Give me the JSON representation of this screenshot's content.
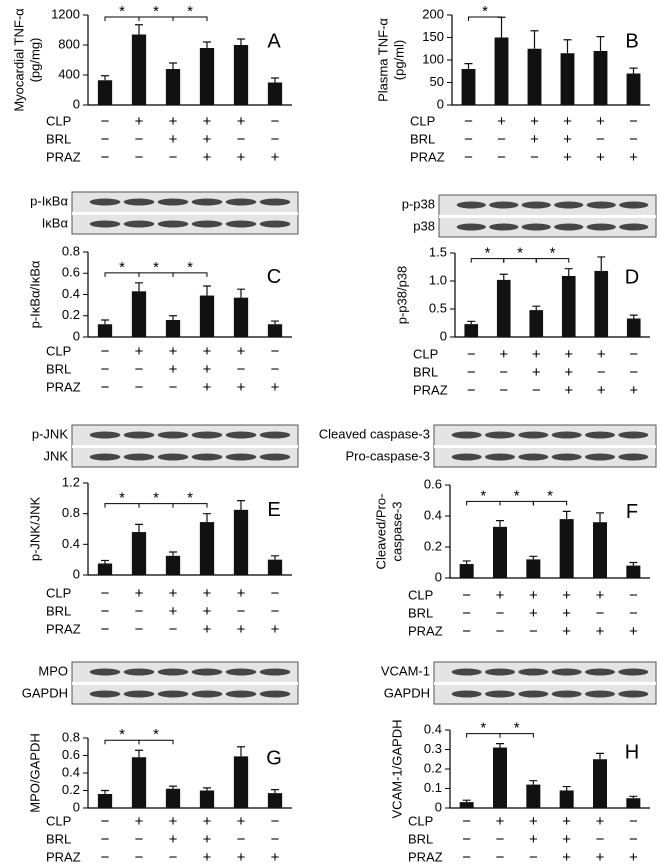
{
  "chart_data": [
    {
      "type": "bar",
      "letter": "A",
      "ylabel": [
        "Myocardial TNF-α",
        "(pg/mg)"
      ],
      "color": "#111111",
      "values": [
        330,
        940,
        480,
        760,
        800,
        300
      ],
      "errors": [
        60,
        130,
        80,
        80,
        80,
        60
      ],
      "ylim": [
        0,
        1200
      ],
      "yticks": [
        0,
        400,
        800,
        1200
      ],
      "significance": [
        {
          "label": "*",
          "from": 0,
          "to": 1
        },
        {
          "label": "*",
          "from": 1,
          "to": 2
        },
        {
          "label": "*",
          "from": 2,
          "to": 3
        }
      ],
      "treatments": [
        {
          "name": "CLP",
          "signs": [
            "−",
            "+",
            "+",
            "+",
            "+",
            "−"
          ]
        },
        {
          "name": "BRL",
          "signs": [
            "−",
            "−",
            "+",
            "+",
            "−",
            "−"
          ]
        },
        {
          "name": "PRAZ",
          "signs": [
            "−",
            "−",
            "−",
            "+",
            "+",
            "+"
          ]
        }
      ]
    },
    {
      "type": "bar",
      "letter": "B",
      "ylabel": [
        "Plasma TNF-α",
        "(pg/ml)"
      ],
      "color": "#111111",
      "values": [
        80,
        150,
        125,
        115,
        120,
        70
      ],
      "errors": [
        12,
        45,
        40,
        30,
        32,
        12
      ],
      "ylim": [
        0,
        200
      ],
      "yticks": [
        0,
        50,
        100,
        150,
        200
      ],
      "significance": [
        {
          "label": "*",
          "from": 0,
          "to": 1
        }
      ],
      "treatments": [
        {
          "name": "CLP",
          "signs": [
            "−",
            "+",
            "+",
            "+",
            "+",
            "−"
          ]
        },
        {
          "name": "BRL",
          "signs": [
            "−",
            "−",
            "+",
            "+",
            "−",
            "−"
          ]
        },
        {
          "name": "PRAZ",
          "signs": [
            "−",
            "−",
            "−",
            "+",
            "+",
            "+"
          ]
        }
      ]
    },
    {
      "type": "bar",
      "letter": "C",
      "blot_labels": [
        "p-IκBα",
        "IκBα"
      ],
      "ylabel": [
        "p-IκBα/IκBα"
      ],
      "color": "#111111",
      "values": [
        0.12,
        0.43,
        0.16,
        0.39,
        0.37,
        0.12
      ],
      "errors": [
        0.04,
        0.08,
        0.04,
        0.09,
        0.08,
        0.03
      ],
      "ylim": [
        0,
        0.8
      ],
      "yticks": [
        0,
        0.2,
        0.4,
        0.6,
        0.8
      ],
      "significance": [
        {
          "label": "*",
          "from": 0,
          "to": 1
        },
        {
          "label": "*",
          "from": 1,
          "to": 2
        },
        {
          "label": "*",
          "from": 2,
          "to": 3
        }
      ],
      "treatments": [
        {
          "name": "CLP",
          "signs": [
            "−",
            "+",
            "+",
            "+",
            "+",
            "−"
          ]
        },
        {
          "name": "BRL",
          "signs": [
            "−",
            "−",
            "+",
            "+",
            "−",
            "−"
          ]
        },
        {
          "name": "PRAZ",
          "signs": [
            "−",
            "−",
            "−",
            "+",
            "+",
            "+"
          ]
        }
      ]
    },
    {
      "type": "bar",
      "letter": "D",
      "blot_labels": [
        "p-p38",
        "p38"
      ],
      "ylabel": [
        "p-p38/p38"
      ],
      "color": "#111111",
      "values": [
        0.23,
        1.02,
        0.48,
        1.09,
        1.18,
        0.33
      ],
      "errors": [
        0.05,
        0.1,
        0.07,
        0.13,
        0.25,
        0.06
      ],
      "ylim": [
        0,
        1.5
      ],
      "yticks": [
        0,
        0.5,
        {
          "value": 1,
          "label": "1.0"
        },
        1.5
      ],
      "significance": [
        {
          "label": "*",
          "from": 0,
          "to": 1
        },
        {
          "label": "*",
          "from": 1,
          "to": 2
        },
        {
          "label": "*",
          "from": 2,
          "to": 3
        }
      ],
      "treatments": [
        {
          "name": "CLP",
          "signs": [
            "−",
            "+",
            "+",
            "+",
            "+",
            "−"
          ]
        },
        {
          "name": "BRL",
          "signs": [
            "−",
            "−",
            "+",
            "+",
            "−",
            "−"
          ]
        },
        {
          "name": "PRAZ",
          "signs": [
            "−",
            "−",
            "−",
            "+",
            "+",
            "+"
          ]
        }
      ]
    },
    {
      "type": "bar",
      "letter": "E",
      "blot_labels": [
        "p-JNK",
        "JNK"
      ],
      "ylabel": [
        "p-JNK/JNK"
      ],
      "color": "#111111",
      "values": [
        0.15,
        0.56,
        0.25,
        0.69,
        0.85,
        0.2
      ],
      "errors": [
        0.04,
        0.1,
        0.05,
        0.11,
        0.12,
        0.05
      ],
      "ylim": [
        0,
        1.2
      ],
      "yticks": [
        0,
        0.4,
        0.8,
        1.2
      ],
      "significance": [
        {
          "label": "*",
          "from": 0,
          "to": 1
        },
        {
          "label": "*",
          "from": 1,
          "to": 2
        },
        {
          "label": "*",
          "from": 2,
          "to": 3
        }
      ],
      "treatments": [
        {
          "name": "CLP",
          "signs": [
            "−",
            "+",
            "+",
            "+",
            "+",
            "−"
          ]
        },
        {
          "name": "BRL",
          "signs": [
            "−",
            "−",
            "+",
            "+",
            "−",
            "−"
          ]
        },
        {
          "name": "PRAZ",
          "signs": [
            "−",
            "−",
            "−",
            "+",
            "+",
            "+"
          ]
        }
      ]
    },
    {
      "type": "bar",
      "letter": "F",
      "blot_labels": [
        "Cleaved caspase-3",
        "Pro-caspase-3"
      ],
      "ylabel": [
        "Cleaved/Pro-",
        "caspase-3"
      ],
      "color": "#111111",
      "values": [
        0.09,
        0.33,
        0.12,
        0.38,
        0.36,
        0.08
      ],
      "errors": [
        0.02,
        0.04,
        0.02,
        0.05,
        0.06,
        0.02
      ],
      "ylim": [
        0,
        0.6
      ],
      "yticks": [
        0,
        0.2,
        0.4,
        0.6
      ],
      "significance": [
        {
          "label": "*",
          "from": 0,
          "to": 1
        },
        {
          "label": "*",
          "from": 1,
          "to": 2
        },
        {
          "label": "*",
          "from": 2,
          "to": 3
        }
      ],
      "treatments": [
        {
          "name": "CLP",
          "signs": [
            "−",
            "+",
            "+",
            "+",
            "+",
            "−"
          ]
        },
        {
          "name": "BRL",
          "signs": [
            "−",
            "−",
            "+",
            "+",
            "−",
            "−"
          ]
        },
        {
          "name": "PRAZ",
          "signs": [
            "−",
            "−",
            "−",
            "+",
            "+",
            "+"
          ]
        }
      ]
    },
    {
      "type": "bar",
      "letter": "G",
      "blot_labels": [
        "MPO",
        "GAPDH"
      ],
      "ylabel": [
        "MPO/GAPDH"
      ],
      "color": "#111111",
      "values": [
        0.16,
        0.58,
        0.22,
        0.2,
        0.59,
        0.17
      ],
      "errors": [
        0.04,
        0.08,
        0.03,
        0.03,
        0.11,
        0.04
      ],
      "ylim": [
        0,
        0.8
      ],
      "yticks": [
        0,
        0.2,
        0.4,
        0.6,
        0.8
      ],
      "significance": [
        {
          "label": "*",
          "from": 0,
          "to": 1
        },
        {
          "label": "*",
          "from": 1,
          "to": 2
        }
      ],
      "treatments": [
        {
          "name": "CLP",
          "signs": [
            "−",
            "+",
            "+",
            "+",
            "+",
            "−"
          ]
        },
        {
          "name": "BRL",
          "signs": [
            "−",
            "−",
            "+",
            "+",
            "−",
            "−"
          ]
        },
        {
          "name": "PRAZ",
          "signs": [
            "−",
            "−",
            "−",
            "+",
            "+",
            "+"
          ]
        }
      ]
    },
    {
      "type": "bar",
      "letter": "H",
      "blot_labels": [
        "VCAM-1",
        "GAPDH"
      ],
      "ylabel": [
        "VCAM-1/GAPDH"
      ],
      "color": "#111111",
      "values": [
        0.03,
        0.31,
        0.12,
        0.09,
        0.25,
        0.05
      ],
      "errors": [
        0.01,
        0.02,
        0.02,
        0.02,
        0.03,
        0.01
      ],
      "ylim": [
        0,
        0.4
      ],
      "yticks": [
        0,
        0.1,
        0.2,
        0.3,
        0.4
      ],
      "significance": [
        {
          "label": "*",
          "from": 0,
          "to": 1
        },
        {
          "label": "*",
          "from": 1,
          "to": 2
        }
      ],
      "treatments": [
        {
          "name": "CLP",
          "signs": [
            "−",
            "+",
            "+",
            "+",
            "+",
            "−"
          ]
        },
        {
          "name": "BRL",
          "signs": [
            "−",
            "−",
            "+",
            "+",
            "−",
            "−"
          ]
        },
        {
          "name": "PRAZ",
          "signs": [
            "−",
            "−",
            "−",
            "+",
            "+",
            "+"
          ]
        }
      ]
    }
  ]
}
